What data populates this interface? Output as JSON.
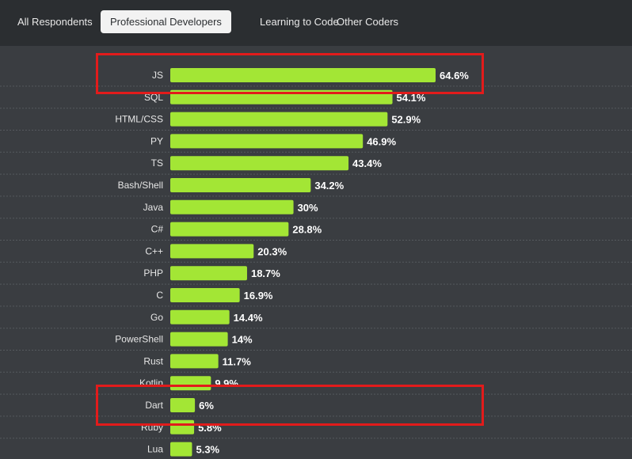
{
  "tabs": [
    {
      "label": "All Respondents",
      "active": false
    },
    {
      "label": "Professional Developers",
      "active": true
    },
    {
      "label": "Learning to Code",
      "active": false
    },
    {
      "label": "Other Coders",
      "active": false
    }
  ],
  "colors": {
    "bar": "#a3e635",
    "label": "#e6e6e6",
    "value": "#ffffff",
    "highlight": "#e21b1b"
  },
  "chart_data": {
    "type": "bar",
    "orientation": "horizontal",
    "categories": [
      "JS",
      "SQL",
      "HTML/CSS",
      "PY",
      "TS",
      "Bash/Shell",
      "Java",
      "C#",
      "C++",
      "PHP",
      "C",
      "Go",
      "PowerShell",
      "Rust",
      "Kotlin",
      "Dart",
      "Ruby",
      "Lua"
    ],
    "values": [
      64.6,
      54.1,
      52.9,
      46.9,
      43.4,
      34.2,
      30,
      28.8,
      20.3,
      18.7,
      16.9,
      14.4,
      14,
      11.7,
      9.9,
      6,
      5.8,
      5.3
    ],
    "value_labels": [
      "64.6%",
      "54.1%",
      "52.9%",
      "46.9%",
      "43.4%",
      "34.2%",
      "30%",
      "28.8%",
      "20.3%",
      "18.7%",
      "16.9%",
      "14.4%",
      "14%",
      "11.7%",
      "9.9%",
      "6%",
      "5.8%",
      "5.3%"
    ],
    "highlighted": [
      "JS",
      "Dart"
    ],
    "grid": true
  }
}
